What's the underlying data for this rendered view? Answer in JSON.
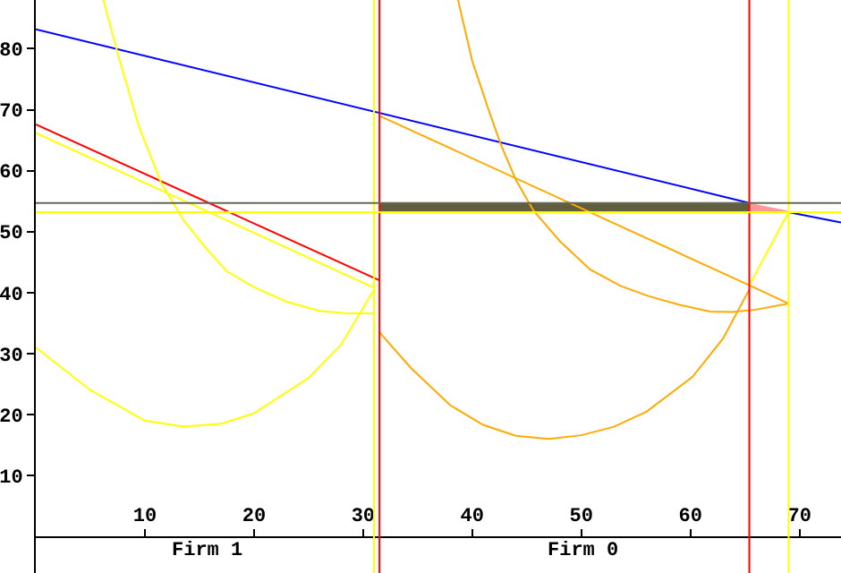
{
  "chart_data": {
    "type": "line",
    "xlim": [
      0,
      73.8
    ],
    "ylim": [
      -6,
      88
    ],
    "xticks": [
      10,
      20,
      30,
      40,
      50,
      60,
      70
    ],
    "yticks": [
      10,
      20,
      30,
      40,
      50,
      60,
      70,
      80
    ],
    "grid": false,
    "series": [
      {
        "color": "#5f5f3f",
        "x": [
          31.5,
          65.4
        ],
        "values": [
          null,
          null
        ],
        "lower": [
          53.2,
          53.2
        ],
        "upper": [
          54.7,
          54.7
        ]
      },
      {
        "color": "#ff9999",
        "x": [
          65.4,
          69
        ],
        "values": [
          null,
          null
        ],
        "lower": [
          53.2,
          53.2
        ],
        "upper": [
          54.7,
          53.4
        ]
      },
      {
        "color": "#0000ff",
        "x": [
          0,
          65.4,
          67,
          69,
          73.8
        ],
        "values": [
          83.2,
          54.7,
          null,
          53.2,
          51.5
        ]
      },
      {
        "color": "#ff0000",
        "x": [
          0,
          31.5
        ],
        "values": [
          67.6,
          42
        ]
      },
      {
        "color": "#ffff00",
        "x": [
          0,
          31
        ],
        "values": [
          66.2,
          40.8
        ]
      },
      {
        "color": "#ffff00",
        "x": [
          6.2,
          7.7,
          9.5,
          11.5,
          13.5,
          15.5,
          17.5,
          20,
          23,
          26,
          28.5,
          31
        ],
        "values": [
          88,
          78,
          67,
          58,
          52,
          47.5,
          43.5,
          40.9,
          38.5,
          37,
          36.6,
          36.6
        ]
      },
      {
        "color": "#ffff00",
        "x": [
          0,
          5,
          10,
          13.5,
          17,
          20,
          25,
          28,
          31
        ],
        "values": [
          31,
          24,
          19,
          18,
          18.5,
          20.2,
          26,
          31.5,
          40.5
        ]
      },
      {
        "color": "#ffaa00",
        "x": [
          31.5,
          65.4,
          69
        ],
        "values": [
          69,
          41.2,
          38.2
        ]
      },
      {
        "color": "#ffaa00",
        "x": [
          31.5,
          34.4,
          38,
          41,
          44,
          47,
          50,
          53,
          56,
          60.2,
          63,
          65.4
        ],
        "values": [
          33.5,
          27.6,
          21.5,
          18.3,
          16.5,
          16,
          16.6,
          18,
          20.5,
          26.2,
          32.5,
          40.5
        ]
      },
      {
        "color": "#ffaa00",
        "x": [
          38.7,
          40,
          41.5,
          42.6,
          44,
          45.6,
          48,
          50.8,
          53.6,
          56.2,
          59,
          61.8,
          63.8,
          66,
          69
        ],
        "values": [
          88,
          78,
          70,
          64.4,
          58.5,
          53.5,
          48.5,
          43.8,
          41.1,
          39.4,
          38,
          36.9,
          36.8,
          37.2,
          38.2
        ]
      },
      {
        "color": "#ffff00",
        "x": [
          65.4,
          69
        ],
        "values": [
          41.2,
          53.2
        ]
      }
    ],
    "ref_lines": [
      {
        "axis": "x",
        "value": 31,
        "color": "#ffff00"
      },
      {
        "axis": "x",
        "value": 31.5,
        "color": "#ff0000"
      },
      {
        "axis": "x",
        "value": 65.4,
        "color": "#ff0000"
      },
      {
        "axis": "x",
        "value": 69,
        "color": "#ffff00"
      },
      {
        "axis": "y",
        "value": 54.7,
        "color": "#666655"
      },
      {
        "axis": "y",
        "value": 53.2,
        "color": "#ffff00"
      }
    ],
    "annotations": [
      "Firm 1",
      "Firm 0"
    ]
  }
}
